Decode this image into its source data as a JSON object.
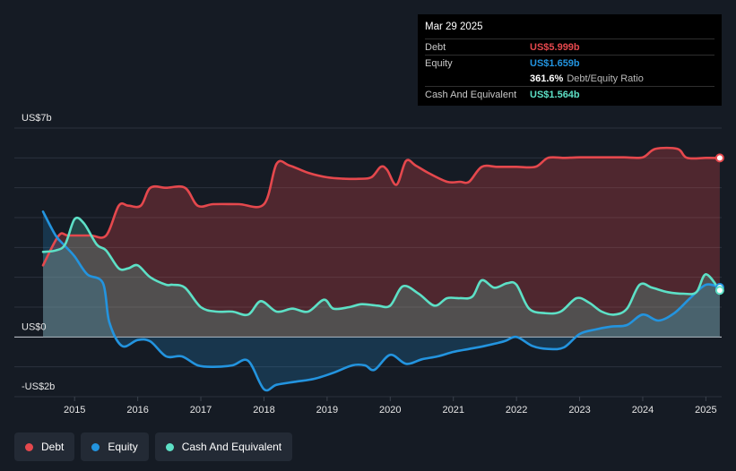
{
  "chart_data": {
    "type": "area",
    "title": "",
    "currency": "US$",
    "y_unit": "billions",
    "ylim": [
      -2,
      7
    ],
    "y_tick_labels": [
      {
        "value": 7,
        "label": "US$7b"
      },
      {
        "value": 0,
        "label": "US$0"
      },
      {
        "value": -2,
        "label": "-US$2b"
      }
    ],
    "x_range": [
      2014.5,
      2025.25
    ],
    "x_ticks": [
      2015,
      2016,
      2017,
      2018,
      2019,
      2020,
      2021,
      2022,
      2023,
      2024,
      2025
    ],
    "x_tick_labels": [
      "2015",
      "2016",
      "2017",
      "2018",
      "2019",
      "2020",
      "2021",
      "2022",
      "2023",
      "2024",
      "2025"
    ],
    "series": [
      {
        "name": "Debt",
        "color": "#e5484d",
        "points": [
          [
            2014.5,
            2.4
          ],
          [
            2014.75,
            3.4
          ],
          [
            2014.9,
            3.4
          ],
          [
            2015.25,
            3.4
          ],
          [
            2015.5,
            3.4
          ],
          [
            2015.7,
            4.4
          ],
          [
            2015.85,
            4.4
          ],
          [
            2016.05,
            4.4
          ],
          [
            2016.2,
            5.0
          ],
          [
            2016.45,
            5.0
          ],
          [
            2016.75,
            5.0
          ],
          [
            2016.95,
            4.4
          ],
          [
            2017.2,
            4.45
          ],
          [
            2017.6,
            4.45
          ],
          [
            2018.0,
            4.45
          ],
          [
            2018.2,
            5.8
          ],
          [
            2018.4,
            5.75
          ],
          [
            2018.7,
            5.5
          ],
          [
            2019.0,
            5.35
          ],
          [
            2019.3,
            5.3
          ],
          [
            2019.5,
            5.3
          ],
          [
            2019.7,
            5.35
          ],
          [
            2019.85,
            5.7
          ],
          [
            2019.95,
            5.6
          ],
          [
            2020.1,
            5.1
          ],
          [
            2020.25,
            5.9
          ],
          [
            2020.4,
            5.75
          ],
          [
            2020.6,
            5.5
          ],
          [
            2020.9,
            5.2
          ],
          [
            2021.1,
            5.2
          ],
          [
            2021.25,
            5.2
          ],
          [
            2021.45,
            5.7
          ],
          [
            2021.7,
            5.7
          ],
          [
            2022.0,
            5.7
          ],
          [
            2022.3,
            5.7
          ],
          [
            2022.5,
            6.0
          ],
          [
            2022.75,
            6.0
          ],
          [
            2023.0,
            6.02
          ],
          [
            2023.3,
            6.02
          ],
          [
            2023.7,
            6.02
          ],
          [
            2024.0,
            6.02
          ],
          [
            2024.2,
            6.3
          ],
          [
            2024.55,
            6.3
          ],
          [
            2024.7,
            6.0
          ],
          [
            2025.0,
            6.0
          ],
          [
            2025.22,
            5.999
          ]
        ]
      },
      {
        "name": "Equity",
        "color": "#2394df",
        "points": [
          [
            2014.5,
            4.2
          ],
          [
            2014.7,
            3.4
          ],
          [
            2014.85,
            3.05
          ],
          [
            2015.0,
            2.7
          ],
          [
            2015.2,
            2.1
          ],
          [
            2015.45,
            1.8
          ],
          [
            2015.55,
            0.5
          ],
          [
            2015.75,
            -0.3
          ],
          [
            2016.0,
            -0.1
          ],
          [
            2016.2,
            -0.15
          ],
          [
            2016.45,
            -0.65
          ],
          [
            2016.7,
            -0.65
          ],
          [
            2016.95,
            -0.95
          ],
          [
            2017.2,
            -1.0
          ],
          [
            2017.5,
            -0.95
          ],
          [
            2017.75,
            -0.8
          ],
          [
            2018.0,
            -1.75
          ],
          [
            2018.2,
            -1.6
          ],
          [
            2018.5,
            -1.5
          ],
          [
            2018.8,
            -1.4
          ],
          [
            2019.1,
            -1.2
          ],
          [
            2019.4,
            -0.95
          ],
          [
            2019.6,
            -0.95
          ],
          [
            2019.75,
            -1.1
          ],
          [
            2020.0,
            -0.6
          ],
          [
            2020.25,
            -0.9
          ],
          [
            2020.5,
            -0.75
          ],
          [
            2020.75,
            -0.65
          ],
          [
            2021.0,
            -0.5
          ],
          [
            2021.25,
            -0.4
          ],
          [
            2021.5,
            -0.3
          ],
          [
            2021.8,
            -0.15
          ],
          [
            2022.0,
            0.0
          ],
          [
            2022.25,
            -0.3
          ],
          [
            2022.5,
            -0.4
          ],
          [
            2022.75,
            -0.35
          ],
          [
            2023.0,
            0.1
          ],
          [
            2023.25,
            0.25
          ],
          [
            2023.5,
            0.35
          ],
          [
            2023.75,
            0.4
          ],
          [
            2024.0,
            0.75
          ],
          [
            2024.25,
            0.55
          ],
          [
            2024.5,
            0.8
          ],
          [
            2024.75,
            1.3
          ],
          [
            2025.0,
            1.75
          ],
          [
            2025.22,
            1.659
          ]
        ]
      },
      {
        "name": "Cash And Equivalent",
        "color": "#5de0c6",
        "points": [
          [
            2014.5,
            2.85
          ],
          [
            2014.7,
            2.9
          ],
          [
            2014.85,
            3.1
          ],
          [
            2015.0,
            3.95
          ],
          [
            2015.15,
            3.8
          ],
          [
            2015.35,
            3.1
          ],
          [
            2015.5,
            2.9
          ],
          [
            2015.7,
            2.3
          ],
          [
            2015.85,
            2.3
          ],
          [
            2016.0,
            2.4
          ],
          [
            2016.2,
            2.0
          ],
          [
            2016.45,
            1.75
          ],
          [
            2016.55,
            1.75
          ],
          [
            2016.75,
            1.65
          ],
          [
            2017.0,
            1.0
          ],
          [
            2017.25,
            0.85
          ],
          [
            2017.5,
            0.85
          ],
          [
            2017.75,
            0.75
          ],
          [
            2017.95,
            1.2
          ],
          [
            2018.2,
            0.85
          ],
          [
            2018.45,
            0.95
          ],
          [
            2018.7,
            0.85
          ],
          [
            2018.95,
            1.25
          ],
          [
            2019.1,
            0.95
          ],
          [
            2019.35,
            1.0
          ],
          [
            2019.55,
            1.1
          ],
          [
            2019.8,
            1.05
          ],
          [
            2020.0,
            1.05
          ],
          [
            2020.2,
            1.7
          ],
          [
            2020.45,
            1.45
          ],
          [
            2020.7,
            1.05
          ],
          [
            2020.9,
            1.3
          ],
          [
            2021.1,
            1.3
          ],
          [
            2021.3,
            1.35
          ],
          [
            2021.45,
            1.9
          ],
          [
            2021.65,
            1.65
          ],
          [
            2021.85,
            1.8
          ],
          [
            2022.0,
            1.75
          ],
          [
            2022.2,
            0.95
          ],
          [
            2022.45,
            0.8
          ],
          [
            2022.7,
            0.85
          ],
          [
            2022.95,
            1.3
          ],
          [
            2023.15,
            1.15
          ],
          [
            2023.35,
            0.85
          ],
          [
            2023.55,
            0.75
          ],
          [
            2023.75,
            0.95
          ],
          [
            2023.95,
            1.75
          ],
          [
            2024.15,
            1.65
          ],
          [
            2024.4,
            1.5
          ],
          [
            2024.65,
            1.45
          ],
          [
            2024.85,
            1.5
          ],
          [
            2025.0,
            2.1
          ],
          [
            2025.22,
            1.564
          ]
        ]
      }
    ]
  },
  "tooltip": {
    "date": "Mar 29 2025",
    "debt_label": "Debt",
    "debt_value": "US$5.999b",
    "debt_color": "#e5484d",
    "equity_label": "Equity",
    "equity_value": "US$1.659b",
    "equity_color": "#2394df",
    "ratio_value": "361.6%",
    "ratio_label": "Debt/Equity Ratio",
    "cash_label": "Cash And Equivalent",
    "cash_value": "US$1.564b",
    "cash_color": "#5de0c6"
  },
  "legend": [
    {
      "label": "Debt",
      "color": "#e5484d"
    },
    {
      "label": "Equity",
      "color": "#2394df"
    },
    {
      "label": "Cash And Equivalent",
      "color": "#5de0c6"
    }
  ]
}
